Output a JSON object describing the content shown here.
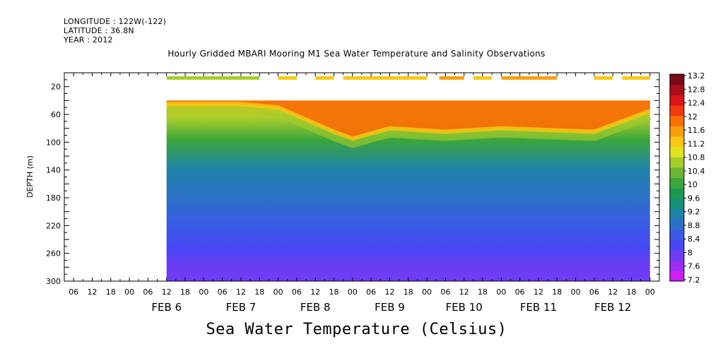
{
  "header": {
    "longitude": "LONGITUDE : 122W(-122)",
    "latitude": "LATITUDE : 36.8N",
    "year": "YEAR : 2012",
    "title": "Hourly Gridded MBARI Mooring M1 Sea Water Temperature and Salinity Observations"
  },
  "chart_data": {
    "type": "heatmap",
    "title": "Hourly Gridded MBARI Mooring M1 Sea Water Temperature and Salinity Observations",
    "subtitle": "Sea Water Temperature (Celsius)",
    "ylabel": "DEPTH (m)",
    "ylim": [
      300,
      0
    ],
    "y_ticks": [
      20,
      60,
      100,
      140,
      180,
      220,
      260,
      300
    ],
    "x_range_hours": [
      "2012-02-05 T03",
      "2012-02-13 T03"
    ],
    "x_hour_ticks": [
      "06",
      "12",
      "18",
      "00",
      "06",
      "12",
      "18",
      "00",
      "06",
      "12",
      "18",
      "00",
      "06",
      "12",
      "18",
      "00",
      "06",
      "12",
      "18",
      "00",
      "06",
      "12",
      "18",
      "00",
      "06",
      "12",
      "18",
      "00",
      "06",
      "12",
      "18",
      "00"
    ],
    "x_day_labels": [
      "FEB  6",
      "FEB  7",
      "FEB  8",
      "FEB  9",
      "FEB 10",
      "FEB 11",
      "FEB 12"
    ],
    "data_start": "2012-02-06 T12",
    "data_end": "2012-02-13 T00",
    "colorbar": {
      "levels": [
        7.2,
        7.6,
        8,
        8.4,
        8.8,
        9.2,
        9.6,
        10,
        10.4,
        10.8,
        11.2,
        11.6,
        12,
        12.4,
        12.8,
        13.2
      ],
      "colors": [
        "#cc1ff0",
        "#9a2ef2",
        "#6e3cf4",
        "#4646f5",
        "#3a5ae6",
        "#2d6fc8",
        "#1f82a8",
        "#158f78",
        "#1a9a50",
        "#3aa63c",
        "#6ab634",
        "#a6cc2c",
        "#e0e41e",
        "#f8c814",
        "#fa9e0c",
        "#f87006",
        "#f23a10",
        "#dc141c",
        "#a8101c",
        "#7a0a18"
      ]
    },
    "surface_temperature_20m": [
      {
        "from": "2012-02-06 T12",
        "to": "2012-02-07 T18",
        "value": 11.4
      },
      {
        "from": "2012-02-08 T00",
        "to": "2012-02-08 T06",
        "value": 12.0
      },
      {
        "from": "2012-02-08 T12",
        "to": "2012-02-08 T18",
        "value": 12.0
      },
      {
        "from": "2012-02-08 T21",
        "to": "2012-02-10 T00",
        "value": 12.2
      },
      {
        "from": "2012-02-10 T04",
        "to": "2012-02-10 T12",
        "value": 12.5
      },
      {
        "from": "2012-02-10 T15",
        "to": "2012-02-10 T21",
        "value": 12.3
      },
      {
        "from": "2012-02-11 T00",
        "to": "2012-02-11 T18",
        "value": 12.4
      },
      {
        "from": "2012-02-12 T06",
        "to": "2012-02-12 T12",
        "value": 12.3
      },
      {
        "from": "2012-02-12 T15",
        "to": "2012-02-13 T00",
        "value": 12.1
      }
    ],
    "mixed_layer_bottom_temperature": [
      {
        "time": "2012-02-06 T12",
        "depth": 45,
        "value": 11.2
      },
      {
        "time": "2012-02-07 T12",
        "depth": 45,
        "value": 11.2
      },
      {
        "time": "2012-02-08 T00",
        "depth": 50,
        "value": 11.6
      },
      {
        "time": "2012-02-08 T18",
        "depth": 85,
        "value": 12.0
      },
      {
        "time": "2012-02-09 T00",
        "depth": 95,
        "value": 11.4
      },
      {
        "time": "2012-02-09 T12",
        "depth": 80,
        "value": 12.0
      },
      {
        "time": "2012-02-10 T06",
        "depth": 85,
        "value": 12.0
      },
      {
        "time": "2012-02-11 T00",
        "depth": 80,
        "value": 12.0
      },
      {
        "time": "2012-02-12 T06",
        "depth": 85,
        "value": 12.0
      },
      {
        "time": "2012-02-13 T00",
        "depth": 55,
        "value": 11.6
      }
    ],
    "vertical_profile_typical": [
      {
        "depth": 40,
        "value": 12.2
      },
      {
        "depth": 80,
        "value": 11.2
      },
      {
        "depth": 120,
        "value": 9.8
      },
      {
        "depth": 160,
        "value": 9.2
      },
      {
        "depth": 200,
        "value": 8.8
      },
      {
        "depth": 240,
        "value": 8.3
      },
      {
        "depth": 280,
        "value": 7.9
      },
      {
        "depth": 300,
        "value": 7.6
      }
    ]
  }
}
